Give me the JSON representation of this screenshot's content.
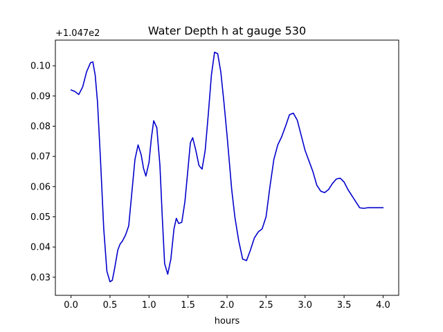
{
  "chart_data": {
    "type": "line",
    "title": "Water Depth h at gauge 530",
    "xlabel": "hours",
    "ylabel": "",
    "y_offset_label": "+1.047e2",
    "xlim": [
      -0.2,
      4.2
    ],
    "ylim": [
      0.024,
      0.1085
    ],
    "x_ticks": [
      0.0,
      0.5,
      1.0,
      1.5,
      2.0,
      2.5,
      3.0,
      3.5,
      4.0
    ],
    "x_tick_labels": [
      "0.0",
      "0.5",
      "1.0",
      "1.5",
      "2.0",
      "2.5",
      "3.0",
      "3.5",
      "4.0"
    ],
    "y_ticks": [
      0.03,
      0.04,
      0.05,
      0.06,
      0.07,
      0.08,
      0.09,
      0.1
    ],
    "y_tick_labels": [
      "0.03",
      "0.04",
      "0.05",
      "0.06",
      "0.07",
      "0.08",
      "0.09",
      "0.10"
    ],
    "grid": false,
    "series": [
      {
        "color": "#0000cc",
        "x": [
          0.0,
          0.05,
          0.1,
          0.15,
          0.2,
          0.25,
          0.28,
          0.31,
          0.34,
          0.38,
          0.42,
          0.46,
          0.5,
          0.53,
          0.56,
          0.6,
          0.63,
          0.66,
          0.7,
          0.74,
          0.78,
          0.82,
          0.86,
          0.9,
          0.93,
          0.96,
          1.0,
          1.03,
          1.06,
          1.1,
          1.14,
          1.17,
          1.2,
          1.24,
          1.28,
          1.32,
          1.35,
          1.38,
          1.42,
          1.46,
          1.5,
          1.53,
          1.56,
          1.6,
          1.64,
          1.68,
          1.72,
          1.76,
          1.8,
          1.84,
          1.88,
          1.92,
          1.96,
          2.0,
          2.03,
          2.06,
          2.1,
          2.15,
          2.2,
          2.25,
          2.3,
          2.35,
          2.4,
          2.45,
          2.5,
          2.55,
          2.6,
          2.65,
          2.7,
          2.75,
          2.8,
          2.85,
          2.9,
          2.95,
          3.0,
          3.05,
          3.1,
          3.15,
          3.2,
          3.25,
          3.3,
          3.35,
          3.4,
          3.45,
          3.5,
          3.55,
          3.6,
          3.65,
          3.7,
          3.75,
          3.8,
          3.85,
          3.9,
          3.95,
          4.0
        ],
        "y": [
          0.092,
          0.0915,
          0.0905,
          0.093,
          0.098,
          0.101,
          0.1013,
          0.097,
          0.088,
          0.068,
          0.046,
          0.032,
          0.0285,
          0.029,
          0.033,
          0.039,
          0.041,
          0.042,
          0.044,
          0.047,
          0.058,
          0.069,
          0.0738,
          0.0705,
          0.066,
          0.0635,
          0.068,
          0.076,
          0.0818,
          0.0795,
          0.067,
          0.05,
          0.0345,
          0.031,
          0.036,
          0.046,
          0.0495,
          0.0478,
          0.0482,
          0.055,
          0.066,
          0.0745,
          0.0762,
          0.072,
          0.067,
          0.0658,
          0.072,
          0.084,
          0.097,
          0.1045,
          0.104,
          0.098,
          0.088,
          0.077,
          0.068,
          0.059,
          0.05,
          0.042,
          0.036,
          0.0355,
          0.039,
          0.043,
          0.045,
          0.046,
          0.05,
          0.06,
          0.069,
          0.0738,
          0.0765,
          0.08,
          0.0838,
          0.0843,
          0.082,
          0.077,
          0.072,
          0.0685,
          0.065,
          0.0605,
          0.0585,
          0.058,
          0.059,
          0.061,
          0.0625,
          0.0628,
          0.0615,
          0.059,
          0.057,
          0.055,
          0.053,
          0.0528,
          0.053,
          0.053,
          0.053,
          0.053,
          0.053
        ]
      }
    ]
  }
}
